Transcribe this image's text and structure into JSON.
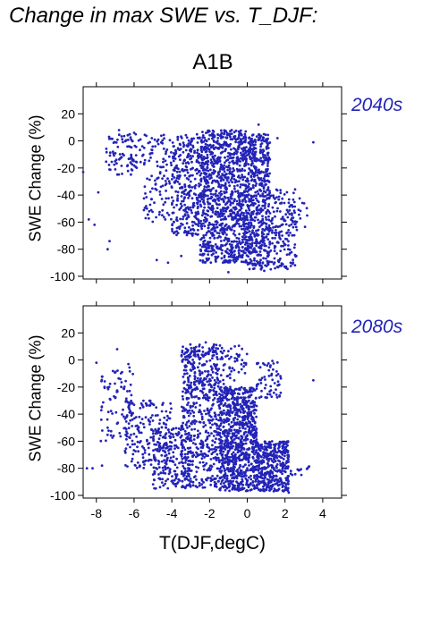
{
  "header": {
    "title": "Change in max SWE vs. T_DJF:",
    "scenario": "A1B"
  },
  "colors": {
    "points": "#2323b8",
    "period_text": "#2323b8"
  },
  "chart_data": [
    {
      "type": "scatter",
      "period_label": "2040s",
      "ylabel": "SWE Change (%)",
      "xlabel": "",
      "xlim": [
        -8.7,
        5.0
      ],
      "ylim": [
        -102,
        40
      ],
      "xticks": [
        -8,
        -6,
        -4,
        -2,
        0,
        2,
        4
      ],
      "yticks": [
        -100,
        -80,
        -60,
        -40,
        -20,
        0,
        20
      ],
      "x_tick_labels_shown": false,
      "grid": false,
      "clusters": [
        {
          "x": [
            -7.5,
            -5.5
          ],
          "y": [
            -25,
            5
          ],
          "n": 90
        },
        {
          "x": [
            -5.5,
            -4.0
          ],
          "y": [
            -60,
            5
          ],
          "n": 110
        },
        {
          "x": [
            -4.0,
            -2.5
          ],
          "y": [
            -70,
            5
          ],
          "n": 300
        },
        {
          "x": [
            -2.5,
            0.0
          ],
          "y": [
            -90,
            8
          ],
          "n": 1050
        },
        {
          "x": [
            0.0,
            1.2
          ],
          "y": [
            -95,
            5
          ],
          "n": 550
        },
        {
          "x": [
            1.2,
            2.6
          ],
          "y": [
            -95,
            -35
          ],
          "n": 150
        },
        {
          "x": [
            2.0,
            3.2
          ],
          "y": [
            -75,
            -40
          ],
          "n": 25
        }
      ],
      "points": [
        {
          "x": -8.4,
          "y": -58
        },
        {
          "x": -8.1,
          "y": -62
        },
        {
          "x": -7.4,
          "y": -80
        },
        {
          "x": -7.3,
          "y": -74
        },
        {
          "x": -7.9,
          "y": -38
        },
        {
          "x": -8.7,
          "y": -23
        },
        {
          "x": -6.8,
          "y": 8
        },
        {
          "x": -6.0,
          "y": 6
        },
        {
          "x": -4.8,
          "y": -88
        },
        {
          "x": -4.2,
          "y": -90
        },
        {
          "x": -3.5,
          "y": -85
        },
        {
          "x": 0.6,
          "y": 12
        },
        {
          "x": 1.6,
          "y": 2
        },
        {
          "x": 3.5,
          "y": -1
        },
        {
          "x": 2.6,
          "y": -85
        },
        {
          "x": -1.0,
          "y": -97
        },
        {
          "x": 0.9,
          "y": -96
        },
        {
          "x": 1.8,
          "y": -92
        }
      ]
    },
    {
      "type": "scatter",
      "period_label": "2080s",
      "ylabel": "SWE Change (%)",
      "xlabel": "T(DJF,degC)",
      "xlim": [
        -8.7,
        5.0
      ],
      "ylim": [
        -102,
        40
      ],
      "xticks": [
        -8,
        -6,
        -4,
        -2,
        0,
        2,
        4
      ],
      "yticks": [
        -100,
        -80,
        -60,
        -40,
        -20,
        0,
        20
      ],
      "x_tick_labels_shown": true,
      "grid": false,
      "clusters": [
        {
          "x": [
            -7.8,
            -6.0
          ],
          "y": [
            -60,
            -5
          ],
          "n": 90
        },
        {
          "x": [
            -6.5,
            -4.0
          ],
          "y": [
            -80,
            -30
          ],
          "n": 180
        },
        {
          "x": [
            -5.0,
            -3.0
          ],
          "y": [
            -95,
            -50
          ],
          "n": 200
        },
        {
          "x": [
            -3.5,
            -1.5
          ],
          "y": [
            -95,
            10
          ],
          "n": 500
        },
        {
          "x": [
            -1.5,
            0.5
          ],
          "y": [
            -97,
            -20
          ],
          "n": 850
        },
        {
          "x": [
            0.5,
            2.2
          ],
          "y": [
            -97,
            -60
          ],
          "n": 400
        },
        {
          "x": [
            -3.2,
            0.0
          ],
          "y": [
            -30,
            12
          ],
          "n": 160
        },
        {
          "x": [
            0.5,
            1.8
          ],
          "y": [
            -30,
            0
          ],
          "n": 60
        },
        {
          "x": [
            2.0,
            3.3
          ],
          "y": [
            -85,
            -78
          ],
          "n": 15
        }
      ],
      "points": [
        {
          "x": -8.5,
          "y": -80
        },
        {
          "x": -8.2,
          "y": -80
        },
        {
          "x": -7.7,
          "y": -78
        },
        {
          "x": -7.4,
          "y": -50
        },
        {
          "x": -6.9,
          "y": 8
        },
        {
          "x": -8.0,
          "y": -2
        },
        {
          "x": -6.3,
          "y": -3
        },
        {
          "x": -2.2,
          "y": 13
        },
        {
          "x": -1.8,
          "y": 10
        },
        {
          "x": 3.5,
          "y": -15
        },
        {
          "x": 3.2,
          "y": -80
        },
        {
          "x": 2.2,
          "y": -98
        },
        {
          "x": 1.4,
          "y": -97
        }
      ]
    }
  ],
  "footer": {
    "xlabel": "T(DJF,degC)"
  }
}
